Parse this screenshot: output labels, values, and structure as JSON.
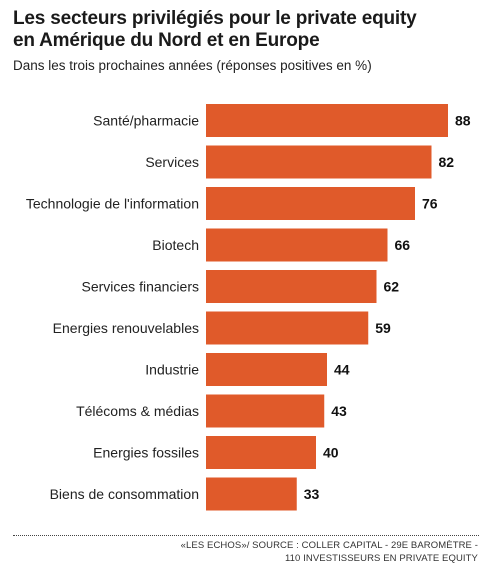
{
  "header": {
    "title_line1": "Les secteurs privilégiés pour le private equity",
    "title_line2": "en Amérique du Nord et en Europe",
    "subtitle": "Dans les trois prochaines années (réponses positives en %)"
  },
  "footer": {
    "source_line1": "«LES ECHOS»/ SOURCE : COLLER CAPITAL - 29E BAROMÈTRE -",
    "source_line2": "110 INVESTISSEURS EN PRIVATE EQUITY"
  },
  "colors": {
    "bar": "#e05a2a"
  },
  "chart_data": {
    "type": "bar",
    "orientation": "horizontal",
    "title": "Les secteurs privilégiés pour le private equity en Amérique du Nord et en Europe",
    "subtitle": "Dans les trois prochaines années (réponses positives en %)",
    "categories": [
      "Santé/pharmacie",
      "Services",
      "Technologie de l'information",
      "Biotech",
      "Services financiers",
      "Energies renouvelables",
      "Industrie",
      "Télécoms & médias",
      "Energies fossiles",
      "Biens de consommation"
    ],
    "values": [
      88,
      82,
      76,
      66,
      62,
      59,
      44,
      43,
      40,
      33
    ],
    "value_labels": [
      "88",
      "82",
      "76",
      "66",
      "62",
      "59",
      "44",
      "43",
      "40",
      "33"
    ],
    "xlabel": "",
    "ylabel": "",
    "grid": false,
    "legend": "none"
  }
}
